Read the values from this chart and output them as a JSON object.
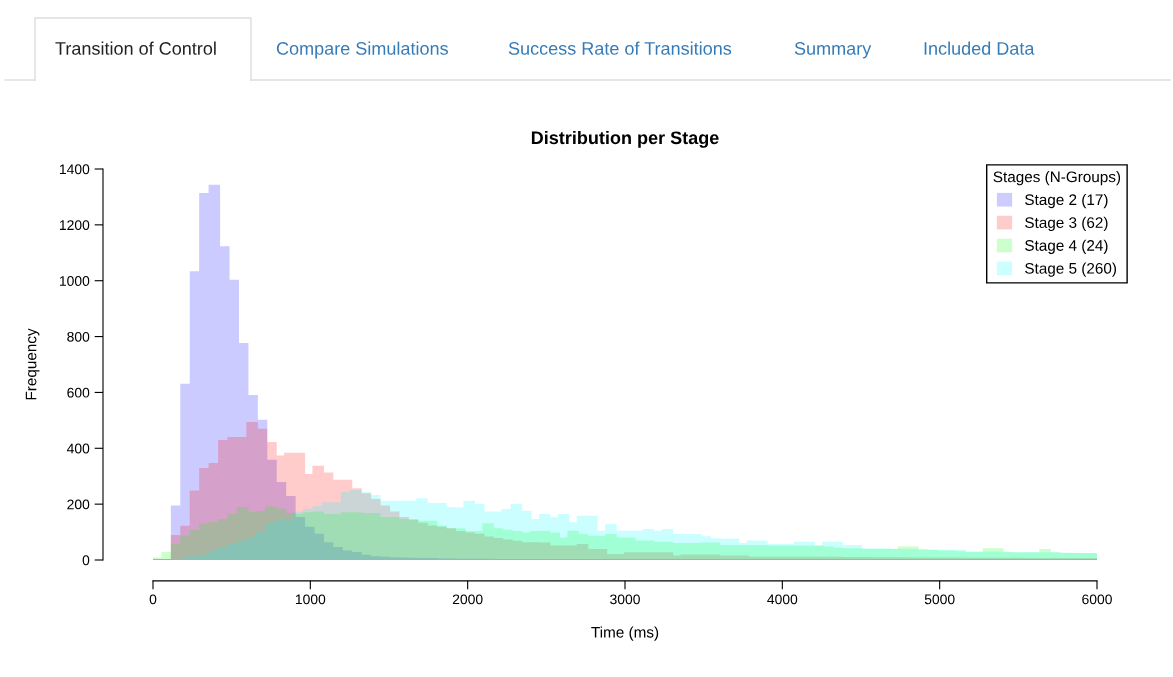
{
  "chart_data": {
    "type": "histogram",
    "title": "Distribution per Stage",
    "xlabel": "Time (ms)",
    "ylabel": "Frequency",
    "legend_title": "Stages (N-Groups)",
    "legend": "top right",
    "grid": false,
    "annotations": [
      "Transition of Control",
      "Compare Simulations",
      "Success Rate of Transitions",
      "Summary",
      "Included Data"
    ],
    "xlim": [
      0,
      6000
    ],
    "ylim": [
      0,
      1400
    ],
    "xticks": [
      0,
      1000,
      2000,
      3000,
      4000,
      5000,
      6000
    ],
    "yticks": [
      0,
      200,
      400,
      600,
      800,
      1000,
      1200,
      1400
    ],
    "bins": [
      0,
      60,
      120,
      180,
      240,
      300,
      360,
      420,
      480,
      540,
      600,
      660,
      720,
      780,
      840,
      900,
      960,
      1020,
      1080,
      1140,
      1200,
      1260,
      1320,
      1380,
      1440,
      1500,
      1560,
      1620,
      1680,
      1740,
      1800,
      1860,
      1920,
      1980,
      2040,
      2100,
      2160,
      2220,
      2280,
      2340,
      2400,
      2460,
      2520,
      2580,
      2640,
      2700,
      2760,
      2820,
      2880,
      2940,
      3000,
      3060,
      3120,
      3180,
      3240,
      3300,
      3360,
      3420,
      3480,
      3540,
      3600,
      3660,
      3720,
      3780,
      3840,
      3900,
      3960,
      4020,
      4080,
      4140,
      4200,
      4260,
      4320,
      4380,
      4440,
      4500,
      4560,
      4620,
      4680,
      4740,
      4800,
      4860,
      4920,
      4980,
      5040,
      5100,
      5160,
      5220,
      5280,
      5340,
      5400,
      5460,
      5520,
      5580,
      5640,
      5700,
      5760,
      5820,
      5880,
      5940,
      6000
    ],
    "series": [
      {
        "name": "Stage 2 (17)",
        "color": "#0000ff",
        "values": [
          0,
          0,
          191,
          627,
          1030,
          1310,
          1340,
          1120,
          1000,
          773,
          587,
          498,
          355,
          276,
          225,
          150,
          115,
          90,
          60,
          43,
          30,
          25,
          15,
          10,
          8,
          6,
          5,
          4,
          3,
          3,
          2,
          2,
          1,
          1,
          1,
          1,
          0,
          0,
          0,
          0,
          0,
          0,
          0,
          0,
          0,
          0,
          0,
          0,
          0,
          0,
          0,
          0,
          0,
          0,
          0,
          0,
          0,
          0,
          0,
          0,
          0,
          0,
          0,
          0,
          0,
          0,
          0,
          0,
          0,
          0,
          0,
          0,
          0,
          0,
          0,
          0,
          0,
          0,
          0,
          0,
          0,
          0,
          0,
          0,
          0,
          0,
          0,
          0,
          0,
          0,
          0,
          0,
          0,
          0,
          0,
          0,
          0,
          0,
          0,
          0
        ]
      },
      {
        "name": "Stage 3 (62)",
        "color": "#ff0000",
        "values": [
          0,
          0,
          86,
          119,
          245,
          326,
          344,
          426,
          437,
          437,
          490,
          466,
          419,
          370,
          380,
          380,
          304,
          334,
          310,
          284,
          284,
          253,
          235,
          215,
          191,
          170,
          150,
          140,
          130,
          120,
          115,
          110,
          100,
          95,
          90,
          80,
          75,
          70,
          65,
          60,
          60,
          59,
          48,
          48,
          48,
          54,
          36,
          36,
          18,
          18,
          24,
          24,
          24,
          24,
          24,
          12,
          16,
          16,
          16,
          16,
          12,
          12,
          12,
          8,
          8,
          8,
          8,
          8,
          8,
          8,
          8,
          8,
          8,
          7,
          7,
          7,
          6,
          6,
          6,
          6,
          5,
          5,
          5,
          5,
          5,
          5,
          4,
          4,
          4,
          4,
          4,
          4,
          3,
          3,
          3,
          3,
          3,
          3,
          3,
          3
        ]
      },
      {
        "name": "Stage 4 (24)",
        "color": "#00ff00",
        "values": [
          5,
          25,
          54,
          83,
          104,
          127,
          132,
          143,
          161,
          186,
          168,
          172,
          188,
          180,
          165,
          161,
          167,
          170,
          161,
          161,
          167,
          167,
          165,
          165,
          150,
          150,
          143,
          143,
          137,
          137,
          120,
          110,
          110,
          100,
          100,
          128,
          110,
          105,
          100,
          95,
          100,
          101,
          95,
          77,
          101,
          89,
          83,
          83,
          89,
          77,
          77,
          66,
          66,
          62,
          62,
          57,
          57,
          57,
          59,
          59,
          50,
          50,
          50,
          50,
          50,
          48,
          48,
          48,
          48,
          48,
          48,
          45,
          40,
          38,
          38,
          36,
          36,
          36,
          36,
          45,
          45,
          33,
          33,
          30,
          30,
          28,
          26,
          26,
          38,
          38,
          26,
          24,
          24,
          24,
          36,
          24,
          22,
          22,
          21,
          21
        ]
      },
      {
        "name": "Stage 5 (260)",
        "color": "#00ffff",
        "values": [
          0,
          0,
          0,
          5,
          10,
          15,
          30,
          40,
          54,
          65,
          78,
          96,
          125,
          143,
          143,
          170,
          180,
          190,
          203,
          203,
          240,
          247,
          239,
          229,
          208,
          208,
          208,
          208,
          217,
          200,
          200,
          185,
          185,
          208,
          197,
          170,
          170,
          179,
          197,
          173,
          143,
          161,
          149,
          161,
          131,
          155,
          155,
          101,
          125,
          101,
          101,
          101,
          107,
          101,
          107,
          89,
          89,
          89,
          81,
          74,
          72,
          72,
          57,
          66,
          66,
          54,
          54,
          54,
          62,
          62,
          48,
          62,
          62,
          50,
          50,
          38,
          38,
          38,
          36,
          36,
          36,
          36,
          33,
          33,
          33,
          33,
          26,
          26,
          26,
          26,
          24,
          24,
          24,
          24,
          24,
          24,
          21,
          21,
          21,
          21
        ]
      }
    ]
  }
}
